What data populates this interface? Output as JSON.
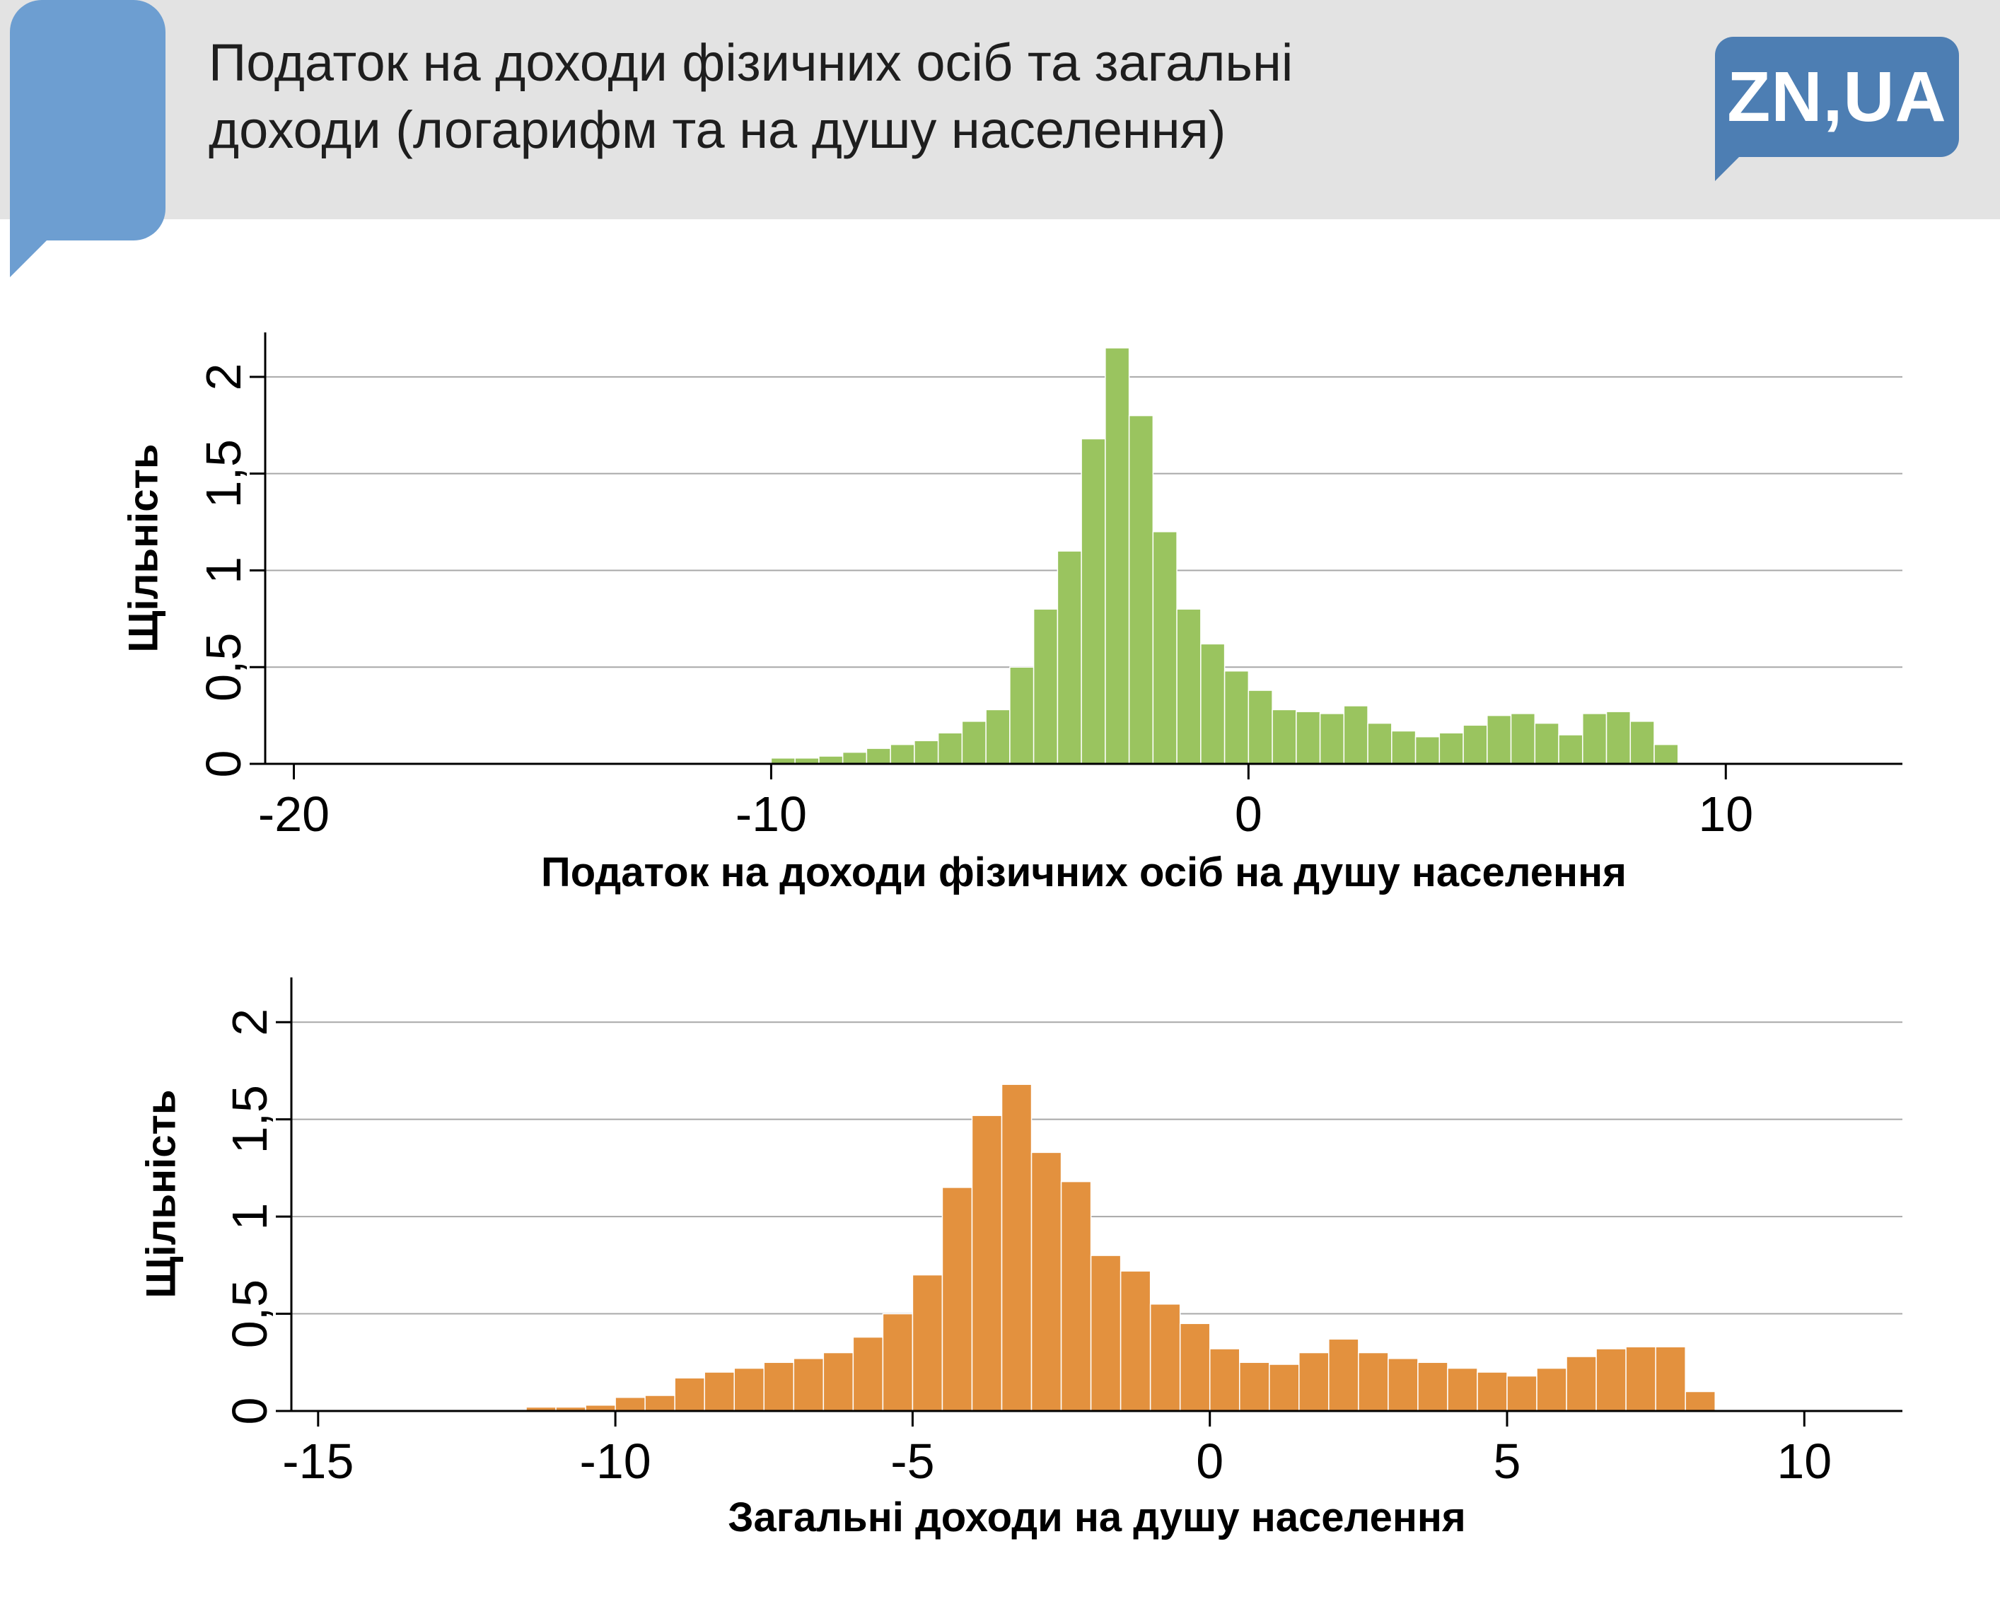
{
  "header": {
    "title_line1": "Податок на доходи фізичних осіб та загальні",
    "title_line2": "доходи (логарифм та на душу населення)",
    "logo_text": "ZN,UA"
  },
  "colors": {
    "header_band": "#e3e3e3",
    "accent_bubble": "#6d9ed1",
    "logo_blue": "#4d7eb3",
    "grid": "#a8a8a8",
    "axis": "#000000",
    "green": "#9ac45f",
    "orange": "#e3913e"
  },
  "chart_data": [
    {
      "type": "bar",
      "subtype": "histogram",
      "title": "",
      "ylabel": "Щільність",
      "xlabel": "Податок на доходи фізичних осіб на душу населення",
      "bar_color": "#9ac45f",
      "grid_color": "#a8a8a8",
      "grid": true,
      "legend": "none",
      "xlim": [
        -20.6,
        13.7
      ],
      "ylim": [
        0,
        2.23
      ],
      "x_ticks": [
        -20,
        -10,
        0,
        10
      ],
      "x_tick_labels": [
        "-20",
        "-10",
        "0",
        "10"
      ],
      "y_ticks": [
        0,
        0.5,
        1,
        1.5,
        2
      ],
      "y_tick_labels": [
        "0",
        "0,5",
        "1",
        "1,5",
        "2"
      ],
      "bins": {
        "start": -10,
        "width": 0.5
      },
      "values": [
        0.03,
        0.03,
        0.04,
        0.06,
        0.08,
        0.1,
        0.12,
        0.16,
        0.22,
        0.28,
        0.5,
        0.8,
        1.1,
        1.68,
        2.15,
        1.8,
        1.2,
        0.8,
        0.62,
        0.48,
        0.38,
        0.28,
        0.27,
        0.26,
        0.3,
        0.21,
        0.17,
        0.14,
        0.16,
        0.2,
        0.25,
        0.26,
        0.21,
        0.15,
        0.26,
        0.27,
        0.22,
        0.1
      ]
    },
    {
      "type": "bar",
      "subtype": "histogram",
      "title": "",
      "ylabel": "Щільність",
      "xlabel": "Загальні доходи на душу населення",
      "bar_color": "#e3913e",
      "grid_color": "#a8a8a8",
      "grid": true,
      "legend": "none",
      "xlim": [
        -15.45,
        11.65
      ],
      "ylim": [
        0,
        2.23
      ],
      "x_ticks": [
        -15,
        -10,
        -5,
        0,
        5,
        10
      ],
      "x_tick_labels": [
        "-15",
        "-10",
        "-5",
        "0",
        "5",
        "10"
      ],
      "y_ticks": [
        0,
        0.5,
        1,
        1.5,
        2
      ],
      "y_tick_labels": [
        "0",
        "0,5",
        "1",
        "1,5",
        "2"
      ],
      "bins": {
        "start": -11.5,
        "width": 0.5
      },
      "values": [
        0.02,
        0.02,
        0.03,
        0.07,
        0.08,
        0.17,
        0.2,
        0.22,
        0.25,
        0.27,
        0.3,
        0.38,
        0.5,
        0.7,
        1.15,
        1.52,
        1.68,
        1.33,
        1.18,
        0.8,
        0.72,
        0.55,
        0.45,
        0.32,
        0.25,
        0.24,
        0.3,
        0.37,
        0.3,
        0.27,
        0.25,
        0.22,
        0.2,
        0.18,
        0.22,
        0.28,
        0.32,
        0.33,
        0.33,
        0.1
      ]
    }
  ]
}
